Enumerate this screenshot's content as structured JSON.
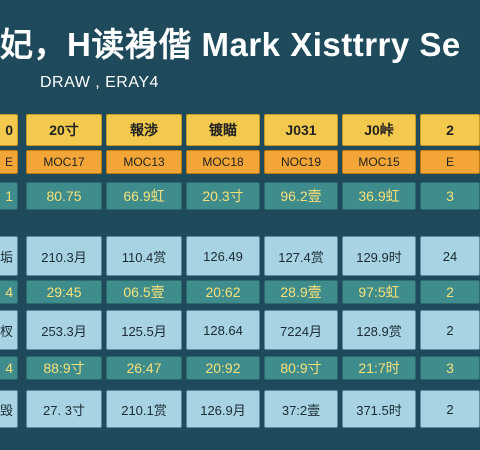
{
  "header": {
    "title": "妃，H读裑偕 Mark Xisttrry Se",
    "subtitle": "DRAW ,  ERAY4"
  },
  "table": {
    "first_col": [
      "0",
      "E",
      "1",
      "垢",
      "4",
      "杈",
      "4",
      "毁"
    ],
    "rows": [
      {
        "style": "hdr",
        "cells": [
          "20寸",
          "報渉",
          "镀瞄",
          "J031",
          "J0峠",
          "2"
        ]
      },
      {
        "style": "sub",
        "cells": [
          "MOC17",
          "MOC13",
          "MOC18",
          "NOC19",
          "MOC15",
          "E"
        ]
      },
      {
        "style": "teal",
        "cells": [
          "80.75",
          "66.9虹",
          "20.3寸",
          "96.2壹",
          "36.9虹",
          "3"
        ]
      },
      {
        "style": "light",
        "cells": [
          "210.3月",
          "110.4赏",
          "126.49",
          "127.4赏",
          "129.9时",
          "24"
        ]
      },
      {
        "style": "teal",
        "cells": [
          "29:45",
          "06.5壹",
          "20:62",
          "28.9壹",
          "97:5虹",
          "2"
        ]
      },
      {
        "style": "light",
        "cells": [
          "253.3月",
          "125.5月",
          "128.64",
          "7224月",
          "128.9赏",
          "2"
        ]
      },
      {
        "style": "teal",
        "cells": [
          "88:9寸",
          "26:47",
          "20:92",
          "80:9寸",
          "21:7时",
          "3"
        ]
      },
      {
        "style": "light",
        "cells": [
          "27. 3寸",
          "210.1赏",
          "126.9月",
          "37:2壹",
          "371.5时",
          "2"
        ]
      }
    ]
  },
  "colors": {
    "background": "#1f4a5c",
    "header_yellow": "#f2c94c",
    "sub_orange": "#f3a637",
    "teal_row": "#3f8c8c",
    "light_row": "#a8d3e3"
  }
}
